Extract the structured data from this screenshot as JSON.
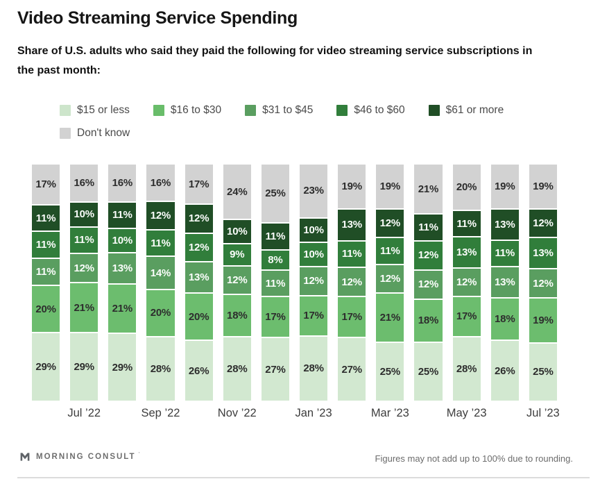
{
  "title": "Video Streaming Service Spending",
  "subtitle": {
    "line1": "Share of U.S. adults who said they paid the following for video streaming service subscriptions in",
    "line2": "the past month:"
  },
  "colors": {
    "tier_15_or_less": "#d2e8d0",
    "tier_16_to_30": "#6cbd6e",
    "tier_31_to_45": "#5a9e60",
    "tier_46_to_60": "#317e3b",
    "tier_61_or_more": "#204e26",
    "dont_know": "#d2d2d2",
    "label_dark": "#2d2d2d",
    "label_light": "#fbfdfb"
  },
  "legend": {
    "items": [
      {
        "label": "$15 or less",
        "color": "#cde5cb"
      },
      {
        "label": "$16 to $30",
        "color": "#69bd6a"
      },
      {
        "label": "$31 to $45",
        "color": "#5a9e60"
      },
      {
        "label": "$46 to $60",
        "color": "#317e3b"
      },
      {
        "label": "$61 or more",
        "color": "#204e26"
      },
      {
        "label": "Don't know",
        "color": "#d2d2d2"
      }
    ]
  },
  "chart_data": {
    "type": "bar",
    "stacked": true,
    "stack_order": "series listed bottom-to-top",
    "bar_count": 14,
    "value_unit": "%",
    "x_tick_labels": [
      "",
      "Jul ’22",
      "",
      "Sep ’22",
      "",
      "Nov ’22",
      "",
      "Jan ’23",
      "",
      "Mar ’23",
      "",
      "May ’23",
      "",
      "Jul ’23"
    ],
    "series": [
      {
        "name": "$15 or less",
        "color": "#d2e8d0",
        "label_color": "#2d2d2d",
        "values": [
          29,
          29,
          29,
          28,
          26,
          28,
          27,
          28,
          27,
          25,
          25,
          28,
          26,
          25
        ]
      },
      {
        "name": "$16 to $30",
        "color": "#6cbd6e",
        "label_color": "#2d2d2d",
        "values": [
          20,
          21,
          21,
          20,
          20,
          18,
          17,
          17,
          17,
          21,
          18,
          17,
          18,
          19
        ]
      },
      {
        "name": "$31 to $45",
        "color": "#5a9e60",
        "label_color": "#fbfdfb",
        "values": [
          11,
          12,
          13,
          14,
          13,
          12,
          11,
          12,
          12,
          12,
          12,
          12,
          13,
          12
        ]
      },
      {
        "name": "$46 to $60",
        "color": "#317e3b",
        "label_color": "#fbfdfb",
        "values": [
          11,
          11,
          10,
          11,
          12,
          9,
          8,
          10,
          11,
          11,
          12,
          13,
          11,
          13
        ]
      },
      {
        "name": "$61 or more",
        "color": "#204e26",
        "label_color": "#fbfdfb",
        "values": [
          11,
          10,
          11,
          12,
          12,
          10,
          11,
          10,
          13,
          12,
          11,
          11,
          13,
          12
        ]
      },
      {
        "name": "Don't know",
        "color": "#d2d2d2",
        "label_color": "#2d2d2d",
        "values": [
          17,
          16,
          16,
          16,
          17,
          24,
          25,
          23,
          19,
          19,
          21,
          20,
          19,
          19
        ]
      }
    ]
  },
  "footer": {
    "brand": "MORNING CONSULT",
    "brand_mark": "’",
    "note": "Figures may not add up to 100% due to rounding."
  }
}
